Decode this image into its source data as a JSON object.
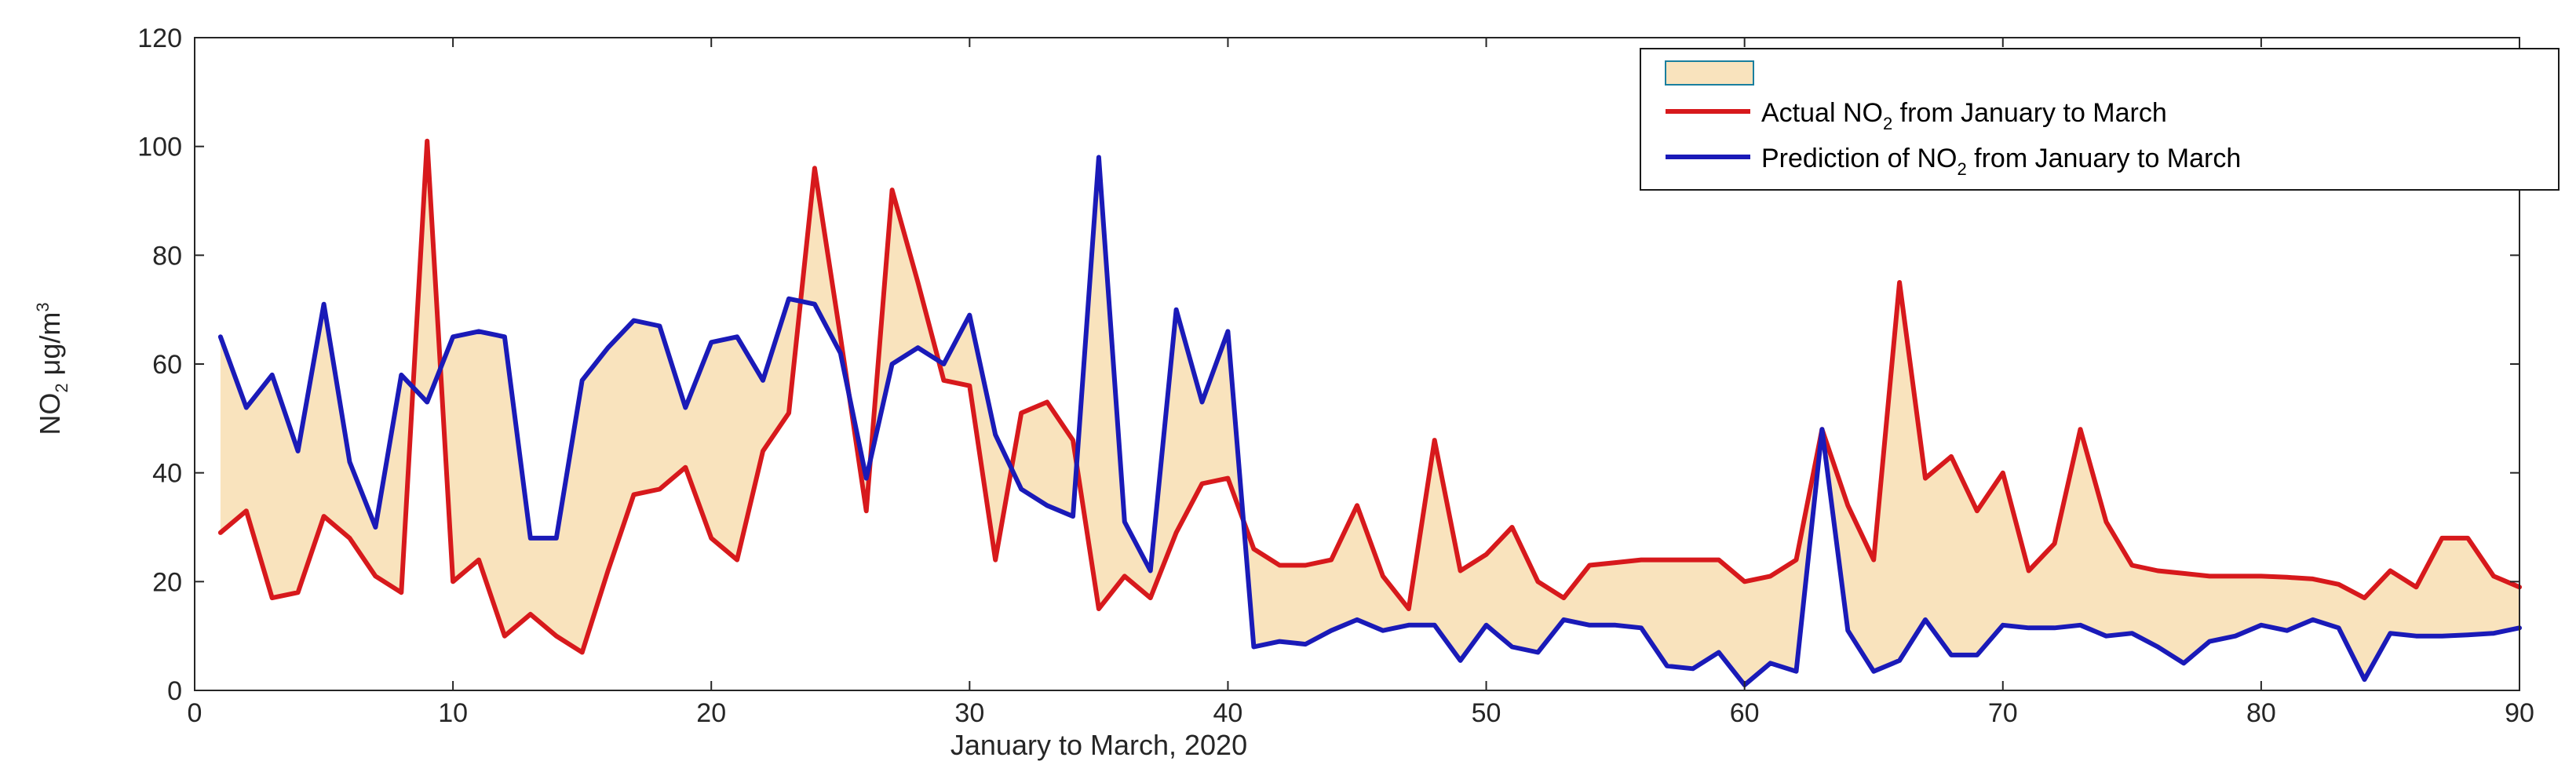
{
  "chart_data": {
    "type": "line",
    "title": "",
    "xlabel": "January to March, 2020",
    "ylabel": {
      "main": "NO",
      "sub": "2",
      "unit": " μg/m",
      "sup": "3"
    },
    "xlim": [
      0,
      90
    ],
    "ylim": [
      0,
      120
    ],
    "xticks": [
      0,
      10,
      20,
      30,
      40,
      50,
      60,
      70,
      80,
      90
    ],
    "yticks": [
      0,
      20,
      40,
      60,
      80,
      100,
      120
    ],
    "grid": false,
    "legend_position": "top-right",
    "fill": {
      "name": "",
      "color": "#f9e3bd",
      "between": [
        "actual",
        "prediction"
      ]
    },
    "x": [
      1,
      2,
      3,
      4,
      5,
      6,
      7,
      8,
      9,
      10,
      11,
      12,
      13,
      14,
      15,
      16,
      17,
      18,
      19,
      20,
      21,
      22,
      23,
      24,
      25,
      26,
      27,
      28,
      29,
      30,
      31,
      32,
      33,
      34,
      35,
      36,
      37,
      38,
      39,
      40,
      41,
      42,
      43,
      44,
      45,
      46,
      47,
      48,
      49,
      50,
      51,
      52,
      53,
      54,
      55,
      56,
      57,
      58,
      59,
      60,
      61,
      62,
      63,
      64,
      65,
      66,
      67,
      68,
      69,
      70,
      71,
      72,
      73,
      74,
      75,
      76,
      77,
      78,
      79,
      80,
      81,
      82,
      83,
      84,
      85,
      86,
      87,
      88,
      89,
      90
    ],
    "series": [
      {
        "id": "actual",
        "name_parts": [
          "Actual NO",
          "2",
          " from January to March"
        ],
        "color": "#d7191c",
        "values": [
          29,
          33,
          17,
          18,
          32,
          28,
          21,
          18,
          101,
          20,
          24,
          10,
          14,
          10,
          7,
          22,
          36,
          37,
          41,
          28,
          24,
          44,
          51,
          96,
          65,
          33,
          92,
          75,
          57,
          56,
          24,
          51,
          53,
          46,
          15,
          21,
          17,
          29,
          38,
          39,
          26,
          23,
          23,
          24,
          34,
          21,
          15,
          46,
          22,
          25,
          30,
          20,
          17,
          23,
          23.5,
          24,
          24,
          24,
          24,
          20,
          21,
          24,
          48,
          34,
          24,
          75,
          39,
          43,
          33,
          40,
          22,
          27,
          48,
          31,
          23,
          22,
          21.5,
          21,
          21,
          21,
          20.8,
          20.5,
          19.5,
          17,
          22,
          19,
          28,
          28,
          21,
          19
        ]
      },
      {
        "id": "prediction",
        "name_parts": [
          "Prediction of NO",
          "2",
          " from January to March"
        ],
        "color": "#1a1ab8",
        "values": [
          65,
          52,
          58,
          44,
          71,
          42,
          30,
          58,
          53,
          65,
          66,
          65,
          28,
          28,
          57,
          63,
          68,
          67,
          52,
          64,
          65,
          57,
          72,
          71,
          62,
          39,
          60,
          63,
          60,
          69,
          47,
          37,
          34,
          32,
          98,
          31,
          22,
          70,
          53,
          66,
          8,
          9,
          8.5,
          11,
          13,
          11,
          12,
          12,
          5.5,
          12,
          8,
          7,
          13,
          12,
          12,
          11.5,
          4.5,
          4,
          7,
          1,
          5,
          3.5,
          48,
          11,
          3.5,
          5.5,
          13,
          6.5,
          6.5,
          12,
          11.5,
          11.5,
          12,
          10,
          10.5,
          8,
          5,
          9,
          10,
          12,
          11,
          13,
          11.5,
          2,
          10.5,
          10,
          10,
          10.2,
          10.5,
          11.5
        ]
      }
    ]
  }
}
